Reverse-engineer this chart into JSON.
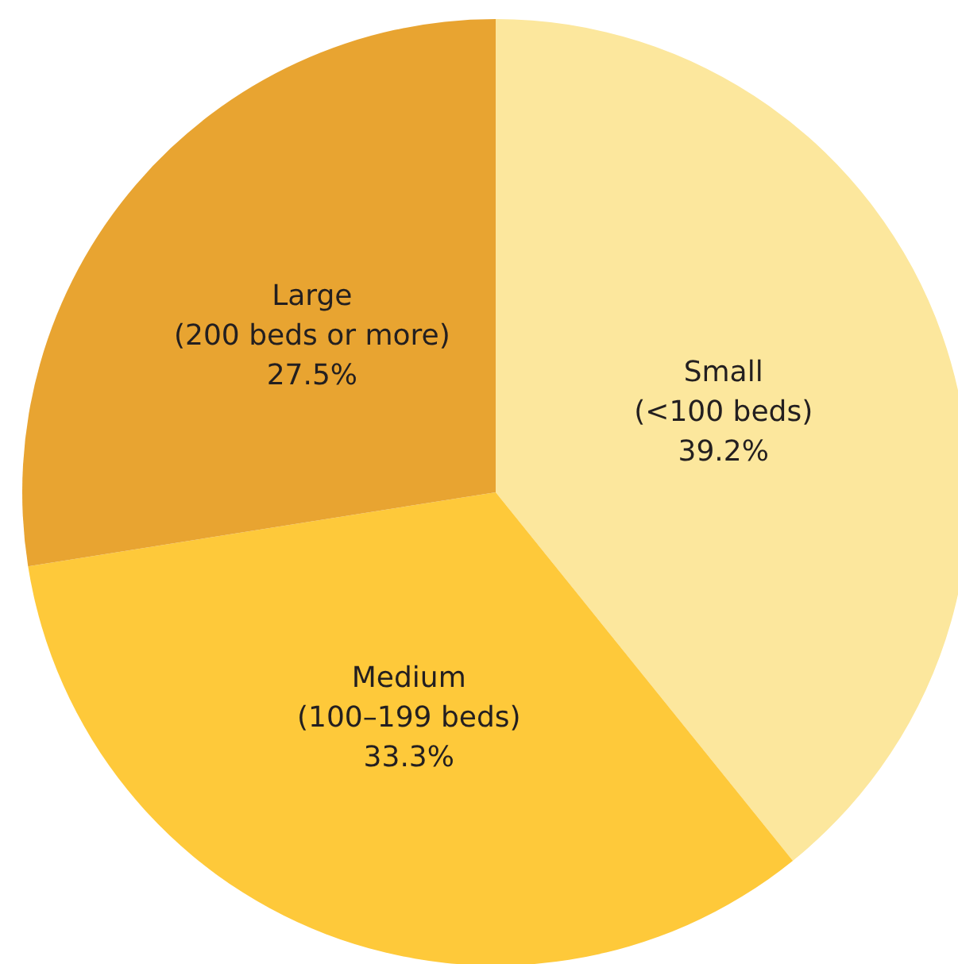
{
  "chart_data": {
    "type": "pie",
    "categories": [
      "Small (<100 beds)",
      "Medium (100–199 beds)",
      "Large (200 beds or more)"
    ],
    "values": [
      39.2,
      33.3,
      27.5
    ],
    "colors": [
      "#fce79d",
      "#fec93a",
      "#e8a431"
    ],
    "value_labels": [
      "39.2%",
      "33.3%",
      "27.5%"
    ],
    "legend": false
  }
}
